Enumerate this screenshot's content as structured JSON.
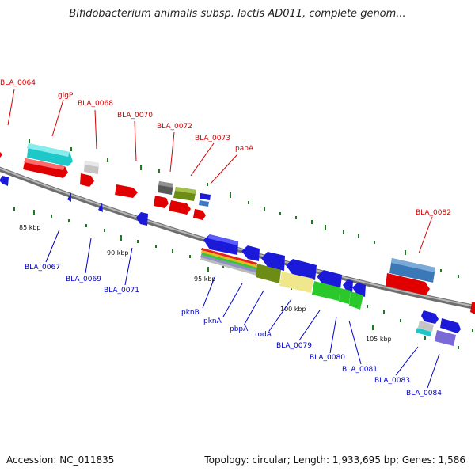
{
  "title": "Bifidobacterium animalis subsp. lactis AD011, complete genom...",
  "footer": {
    "accession": "Accession: NC_011835",
    "summary": "Topology: circular; Length: 1,933,695 bp; Genes: 1,586"
  },
  "colors": {
    "backbone": "#8a8a8a",
    "red_label": "#d40000",
    "blue_label": "#0000c8",
    "tick": "#1e7a1e"
  },
  "scale_labels": [
    "85 kbp",
    "90 kbp",
    "95 kbp",
    "100 kbp",
    "105 kbp"
  ],
  "top_labels": [
    "BLA_0064",
    "glgP",
    "BLA_0068",
    "BLA_0070",
    "BLA_0072",
    "BLA_0073",
    "pabA",
    "BLA_0082"
  ],
  "bottom_labels": [
    "BLA_0067",
    "BLA_0069",
    "BLA_0071",
    "pknB",
    "pknA",
    "pbpA",
    "rodA",
    "BLA_0079",
    "BLA_0080",
    "BLA_0081",
    "BLA_0083",
    "BLA_0084"
  ]
}
